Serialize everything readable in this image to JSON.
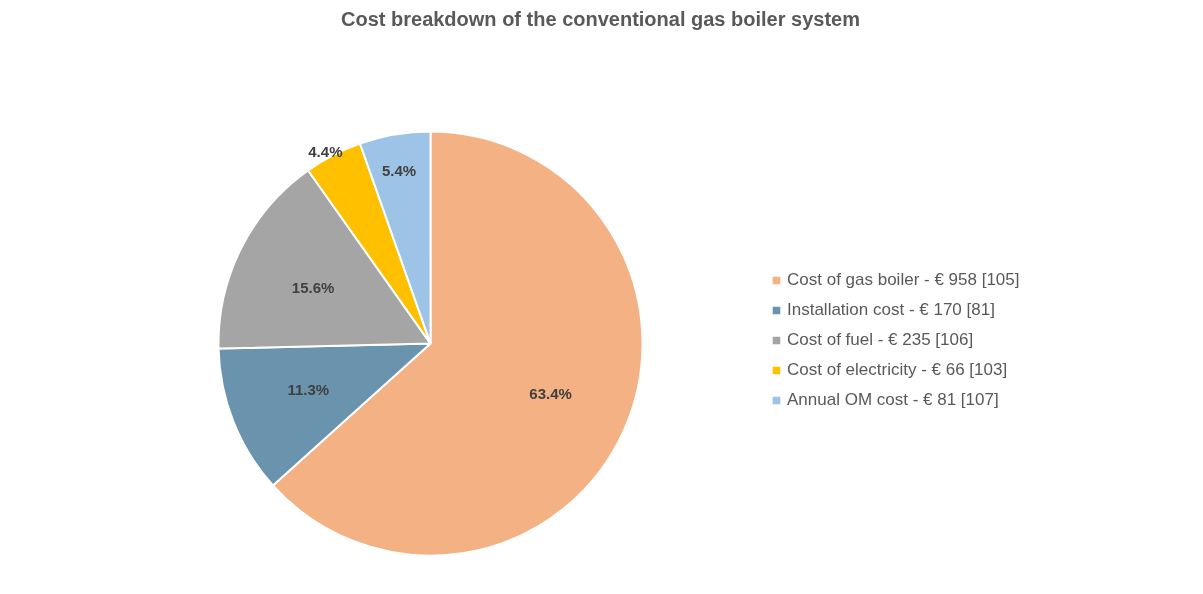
{
  "chart_data": {
    "type": "pie",
    "title": "Cost breakdown of the conventional gas boiler system",
    "categories": [
      "Cost of gas boiler - € 958 [105]",
      "Installation cost - € 170 [81]",
      "Cost of fuel - € 235 [106]",
      "Cost of electricity - € 66 [103]",
      "Annual OM cost - € 81 [107]"
    ],
    "values": [
      63.4,
      11.3,
      15.6,
      4.4,
      5.4
    ],
    "colors": [
      "#f4b183",
      "#6a93ad",
      "#a5a5a5",
      "#ffc000",
      "#9dc3e6"
    ],
    "value_labels": [
      "63.4%",
      "11.3%",
      "15.6%",
      "4.4%",
      "5.4%"
    ],
    "legend": "right"
  }
}
